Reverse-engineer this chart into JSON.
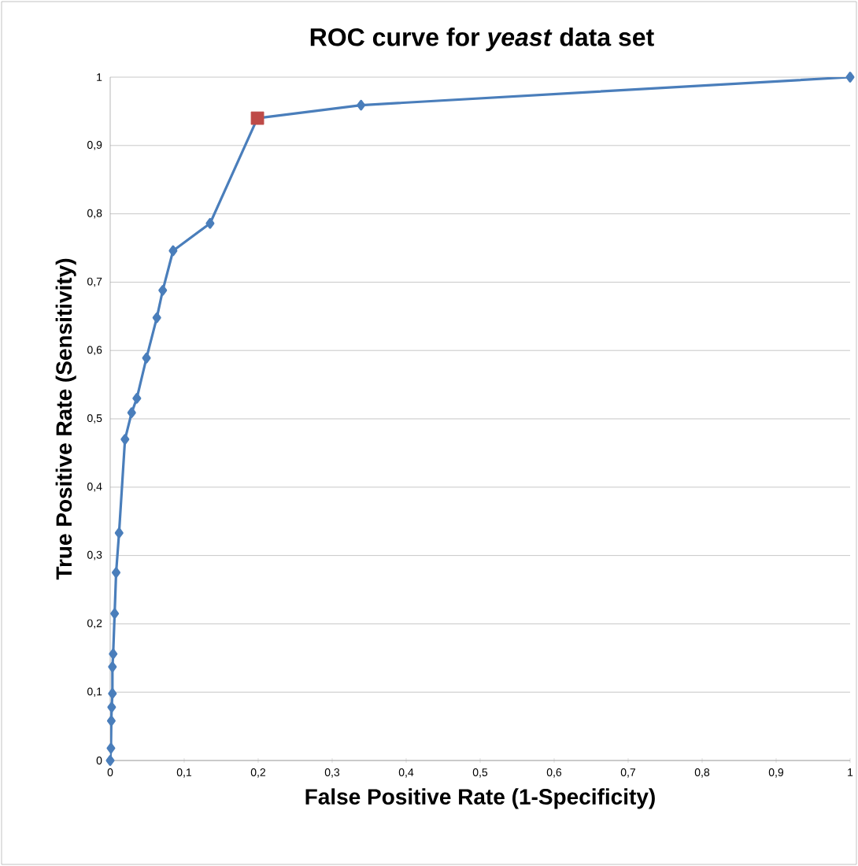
{
  "chart_data": {
    "type": "line",
    "title": "ROC curve for *yeast* data set",
    "xlabel": "False Positive Rate (1-Specificity)",
    "ylabel": "True Positive Rate (Sensitivity)",
    "xlim": [
      0,
      1
    ],
    "ylim": [
      0,
      1
    ],
    "xticks": [
      {
        "value": 0,
        "label": "0"
      },
      {
        "value": 0.1,
        "label": "0,1"
      },
      {
        "value": 0.2,
        "label": "0,2"
      },
      {
        "value": 0.3,
        "label": "0,3"
      },
      {
        "value": 0.4,
        "label": "0,4"
      },
      {
        "value": 0.5,
        "label": "0,5"
      },
      {
        "value": 0.6,
        "label": "0,6"
      },
      {
        "value": 0.7,
        "label": "0,7"
      },
      {
        "value": 0.8,
        "label": "0,8"
      },
      {
        "value": 0.9,
        "label": "0,9"
      },
      {
        "value": 1,
        "label": "1"
      }
    ],
    "yticks": [
      {
        "value": 0,
        "label": "0"
      },
      {
        "value": 0.1,
        "label": "0,1"
      },
      {
        "value": 0.2,
        "label": "0,2"
      },
      {
        "value": 0.3,
        "label": "0,3"
      },
      {
        "value": 0.4,
        "label": "0,4"
      },
      {
        "value": 0.5,
        "label": "0,5"
      },
      {
        "value": 0.6,
        "label": "0,6"
      },
      {
        "value": 0.7,
        "label": "0,7"
      },
      {
        "value": 0.8,
        "label": "0,8"
      },
      {
        "value": 0.9,
        "label": "0,9"
      },
      {
        "value": 1,
        "label": "1"
      }
    ],
    "grid": "y",
    "series": [
      {
        "color": "#4a7ebb",
        "marker": "diamond",
        "x": [
          0,
          0.001,
          0.0015,
          0.002,
          0.003,
          0.003,
          0.004,
          0.006,
          0.008,
          0.012,
          0.02,
          0.029,
          0.036,
          0.049,
          0.063,
          0.071,
          0.085,
          0.135,
          0.199,
          0.339,
          1
        ],
        "values": [
          0,
          0.018,
          0.058,
          0.078,
          0.098,
          0.137,
          0.156,
          0.215,
          0.275,
          0.333,
          0.47,
          0.509,
          0.53,
          0.589,
          0.648,
          0.688,
          0.746,
          0.786,
          0.94,
          0.959,
          1
        ]
      },
      {
        "type": "scatter",
        "color": "#be4b48",
        "marker": "square",
        "x": [
          0.199
        ],
        "values": [
          0.94
        ]
      }
    ]
  }
}
